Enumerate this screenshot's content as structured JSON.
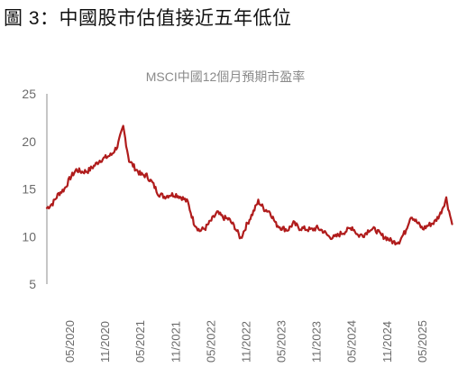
{
  "page": {
    "title": "圖 3：中國股市估值接近五年低位"
  },
  "chart_data": {
    "type": "line",
    "title": "MSCI中國12個月預期市盈率",
    "xlabel": "",
    "ylabel": "",
    "ylim": [
      5,
      25
    ],
    "yticks": [
      5,
      10,
      15,
      20,
      25
    ],
    "xlim": [
      "2020-01",
      "2025-11"
    ],
    "x_ticks": [
      "05/2020",
      "11/2020",
      "05/2021",
      "11/2021",
      "05/2022",
      "11/2022",
      "05/2023",
      "11/2023",
      "05/2024",
      "11/2024",
      "05/2025"
    ],
    "grid": false,
    "legend": "none",
    "series": [
      {
        "color": "#b01c1c",
        "x": [
          "2020-01",
          "2020-02",
          "2020-03",
          "2020-04",
          "2020-05",
          "2020-06",
          "2020-07",
          "2020-08",
          "2020-09",
          "2020-10",
          "2020-11",
          "2020-12",
          "2021-01",
          "2021-02",
          "2021-03",
          "2021-04",
          "2021-05",
          "2021-06",
          "2021-07",
          "2021-08",
          "2021-09",
          "2021-10",
          "2021-11",
          "2021-12",
          "2022-01",
          "2022-02",
          "2022-03",
          "2022-04",
          "2022-05",
          "2022-06",
          "2022-07",
          "2022-08",
          "2022-09",
          "2022-10",
          "2022-11",
          "2022-12",
          "2023-01",
          "2023-02",
          "2023-03",
          "2023-04",
          "2023-05",
          "2023-06",
          "2023-07",
          "2023-08",
          "2023-09",
          "2023-10",
          "2023-11",
          "2023-12",
          "2024-01",
          "2024-02",
          "2024-03",
          "2024-04",
          "2024-05",
          "2024-06",
          "2024-07",
          "2024-08",
          "2024-09",
          "2024-10",
          "2024-11",
          "2024-12",
          "2025-01",
          "2025-02",
          "2025-03",
          "2025-04",
          "2025-05",
          "2025-06",
          "2025-07",
          "2025-08",
          "2025-09",
          "2025-10"
        ],
        "values": [
          13.0,
          13.5,
          14.5,
          15.0,
          16.2,
          17.0,
          16.8,
          16.9,
          17.4,
          18.0,
          18.3,
          18.6,
          19.5,
          21.5,
          18.0,
          17.2,
          16.5,
          16.4,
          15.6,
          14.5,
          14.2,
          14.4,
          14.4,
          14.1,
          13.6,
          11.5,
          10.6,
          10.9,
          11.7,
          12.5,
          12.0,
          11.8,
          11.0,
          9.8,
          11.2,
          12.4,
          13.7,
          12.9,
          12.6,
          11.3,
          10.9,
          10.7,
          11.4,
          10.9,
          10.8,
          10.7,
          10.9,
          10.6,
          10.0,
          9.9,
          10.3,
          10.6,
          11.0,
          10.1,
          10.2,
          10.8,
          10.7,
          10.1,
          9.8,
          9.4,
          9.5,
          10.5,
          12.2,
          11.5,
          10.8,
          11.2,
          11.5,
          12.4,
          14.0,
          11.3
        ]
      }
    ]
  }
}
